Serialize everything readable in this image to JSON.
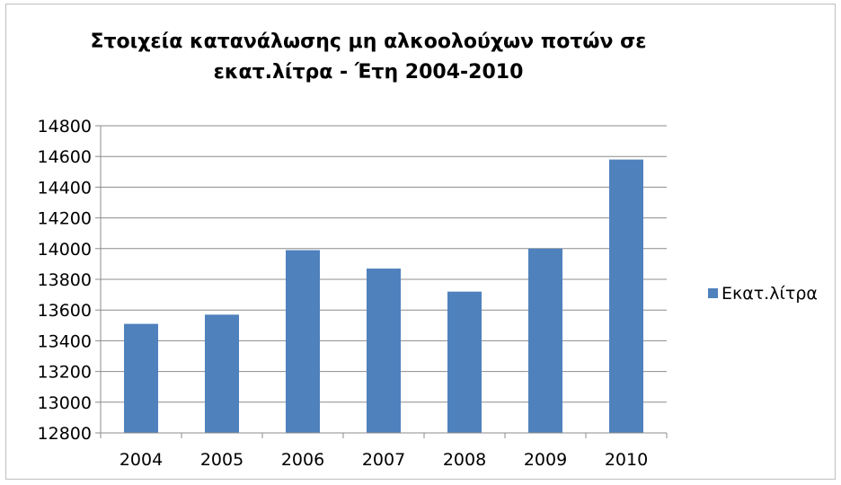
{
  "chart_data": {
    "type": "bar",
    "title": "Στοιχεία κατανάλωσης μη αλκοολούχων ποτών σε εκατ.λίτρα - Έτη 2004-2010",
    "title_lines": [
      "Στοιχεία κατανάλωσης μη αλκοολούχων ποτών σε",
      "εκατ.λίτρα - Έτη 2004-2010"
    ],
    "categories": [
      "2004",
      "2005",
      "2006",
      "2007",
      "2008",
      "2009",
      "2010"
    ],
    "series": [
      {
        "name": "Εκατ.λίτρα",
        "values": [
          13510,
          13570,
          13990,
          13870,
          13720,
          14000,
          14580
        ],
        "color": "#4f81bd"
      }
    ],
    "xlabel": "",
    "ylabel": "",
    "ylim": [
      12800,
      14800
    ],
    "yticks": [
      12800,
      13000,
      13200,
      13400,
      13600,
      13800,
      14000,
      14200,
      14400,
      14600,
      14800
    ],
    "grid": true,
    "legend_position": "right"
  }
}
